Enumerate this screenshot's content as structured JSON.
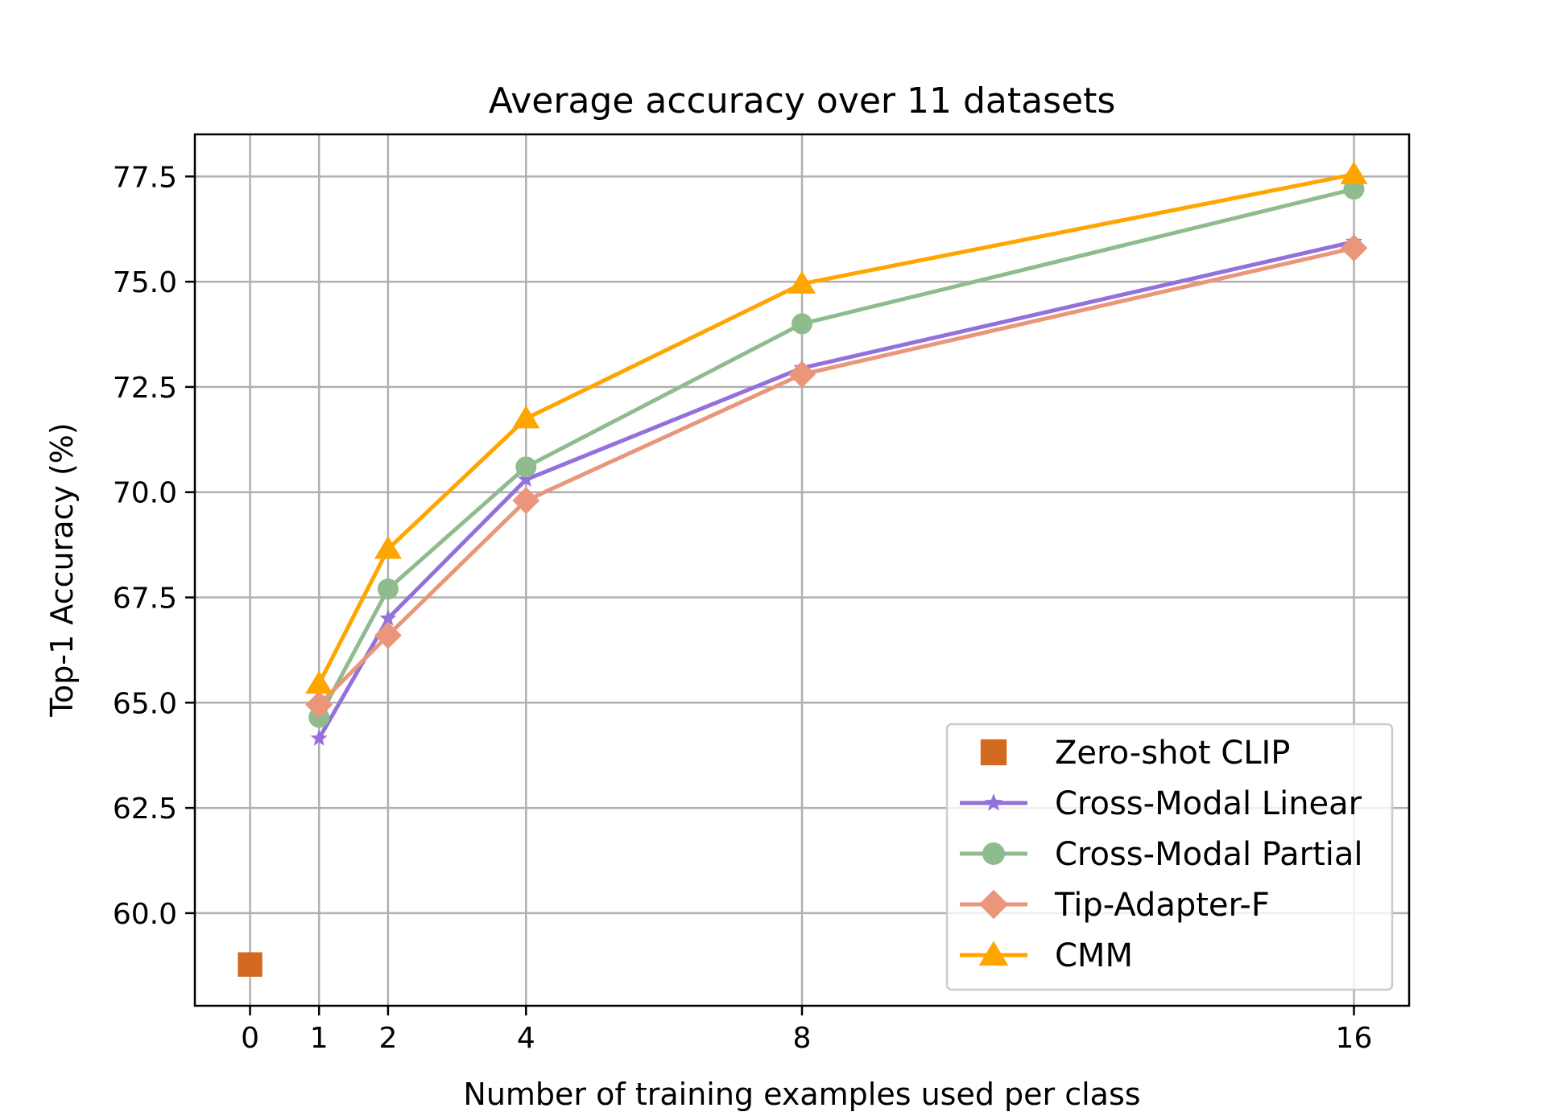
{
  "chart_data": {
    "type": "line",
    "title": "Average accuracy over 11 datasets",
    "xlabel": "Number of training examples used per class",
    "ylabel": "Top-1 Accuracy (%)",
    "xlim": [
      -0.8,
      16.8
    ],
    "ylim": [
      57.8,
      78.5
    ],
    "x_ticks": [
      0,
      1,
      2,
      4,
      8,
      16
    ],
    "x_tick_labels": [
      "0",
      "1",
      "2",
      "4",
      "8",
      "16"
    ],
    "y_ticks": [
      60.0,
      62.5,
      65.0,
      67.5,
      70.0,
      72.5,
      75.0,
      77.5
    ],
    "y_tick_labels": [
      "60.0",
      "62.5",
      "65.0",
      "67.5",
      "70.0",
      "72.5",
      "75.0",
      "77.5"
    ],
    "grid": true,
    "legend_position": "lower-right",
    "series": [
      {
        "name": "Zero-shot CLIP",
        "color": "#d2691e",
        "marker": "square",
        "line": false,
        "x": [
          0
        ],
        "values": [
          58.78
        ]
      },
      {
        "name": "Cross-Modal Linear",
        "color": "#9370db",
        "marker": "star",
        "line": true,
        "x": [
          1,
          2,
          4,
          8,
          16
        ],
        "values": [
          64.15,
          67.0,
          70.3,
          72.95,
          75.95
        ]
      },
      {
        "name": "Cross-Modal Partial",
        "color": "#8fbc8f",
        "marker": "circle",
        "line": true,
        "x": [
          1,
          2,
          4,
          8,
          16
        ],
        "values": [
          64.65,
          67.7,
          70.6,
          74.0,
          77.2
        ]
      },
      {
        "name": "Tip-Adapter-F",
        "color": "#e9967a",
        "marker": "diamond",
        "line": true,
        "x": [
          1,
          2,
          4,
          8,
          16
        ],
        "values": [
          64.95,
          66.6,
          69.8,
          72.8,
          75.8
        ]
      },
      {
        "name": "CMM",
        "color": "#ffa500",
        "marker": "triangle",
        "line": true,
        "x": [
          1,
          2,
          4,
          8,
          16
        ],
        "values": [
          65.45,
          68.65,
          71.75,
          74.95,
          77.55
        ]
      }
    ]
  }
}
